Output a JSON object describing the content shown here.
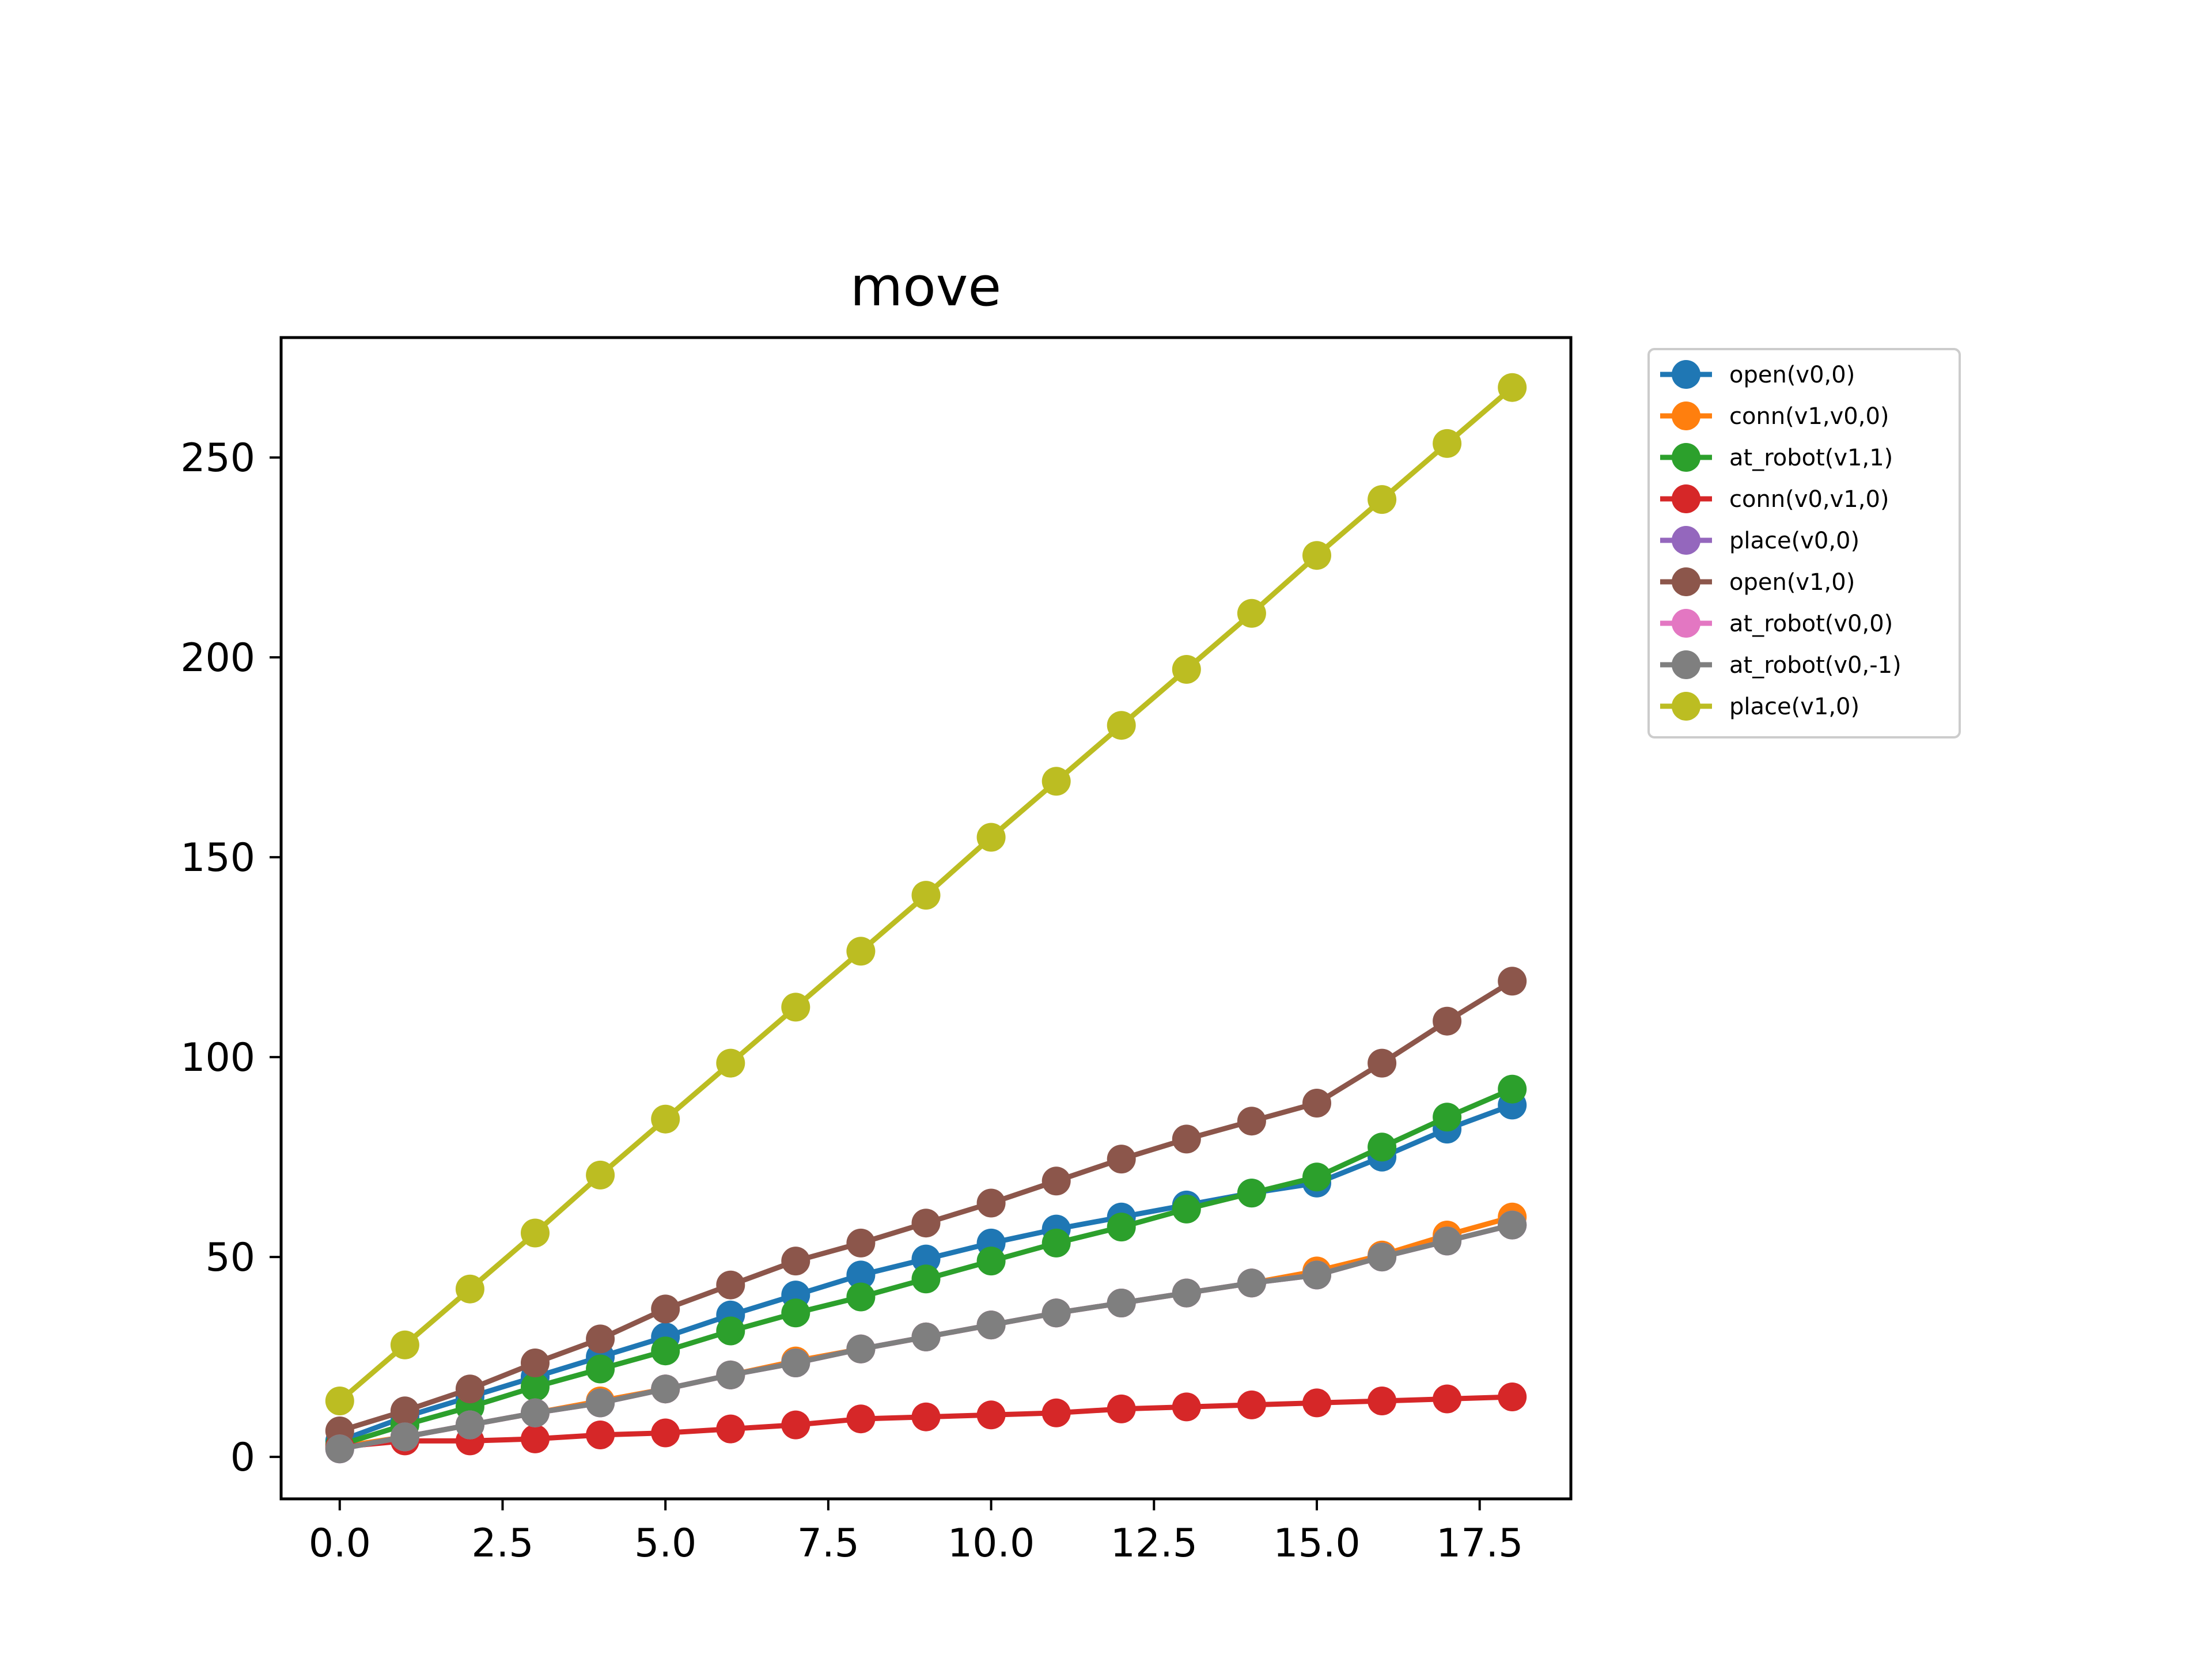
{
  "chart_data": {
    "type": "line",
    "title": "move",
    "xlabel": "",
    "ylabel": "",
    "xlim": [
      -0.9,
      18.9
    ],
    "ylim": [
      -10.5,
      280
    ],
    "x_ticks": [
      "0.0",
      "2.5",
      "5.0",
      "7.5",
      "10.0",
      "12.5",
      "15.0",
      "17.5"
    ],
    "y_ticks": [
      "0",
      "50",
      "100",
      "150",
      "200",
      "250"
    ],
    "grid": false,
    "legend_position": "outside-right-top",
    "x": [
      0,
      1,
      2,
      3,
      4,
      5,
      6,
      7,
      8,
      9,
      10,
      11,
      12,
      13,
      14,
      15,
      16,
      17,
      18
    ],
    "series": [
      {
        "name": "open(v0,0)",
        "color": "#1f77b4",
        "values": [
          4,
          10,
          15,
          20,
          25,
          30,
          35.5,
          40.5,
          45.5,
          49.5,
          53.5,
          57,
          60,
          63,
          66,
          68.5,
          75,
          82,
          88
        ]
      },
      {
        "name": "conn(v1,v0,0)",
        "color": "#ff7f0e",
        "values": [
          2.5,
          5,
          8,
          11,
          14,
          17,
          20.5,
          24,
          27,
          30,
          33,
          36,
          38.5,
          41,
          43.5,
          46.5,
          50.5,
          55.5,
          60
        ]
      },
      {
        "name": "at_robot(v1,1)",
        "color": "#2ca02c",
        "values": [
          3,
          8,
          12.5,
          17.5,
          22,
          26.5,
          31.5,
          36,
          40,
          44.5,
          49,
          53.5,
          57.5,
          62,
          66,
          70,
          77.5,
          85,
          92
        ]
      },
      {
        "name": "conn(v0,v1,0)",
        "color": "#d62728",
        "values": [
          2.5,
          4,
          4,
          4.5,
          5.5,
          6,
          7,
          8,
          9.5,
          10,
          10.5,
          11,
          12,
          12.5,
          13,
          13.5,
          14,
          14.5,
          15
        ]
      },
      {
        "name": "place(v0,0)",
        "color": "#9467bd",
        "values": [
          2,
          5,
          8,
          11,
          13.5,
          17,
          20.5,
          23.5,
          27,
          30,
          33,
          36,
          38.5,
          41,
          43.5,
          45.5,
          50,
          54,
          58
        ]
      },
      {
        "name": "open(v1,0)",
        "color": "#8c564b",
        "values": [
          6.5,
          11.5,
          17,
          23.5,
          29.5,
          37,
          43,
          49,
          53.5,
          58.5,
          63.5,
          69,
          74.5,
          79.5,
          84,
          88.5,
          98.5,
          109,
          119
        ]
      },
      {
        "name": "at_robot(v0,0)",
        "color": "#e377c2",
        "values": [
          2,
          5,
          8,
          11,
          13.5,
          17,
          20.5,
          23.5,
          27,
          30,
          33,
          36,
          38.5,
          41,
          43.5,
          45.5,
          50,
          54,
          58
        ]
      },
      {
        "name": "at_robot(v0,-1)",
        "color": "#7f7f7f",
        "values": [
          2,
          5,
          8,
          11,
          13.5,
          17,
          20.5,
          23.5,
          27,
          30,
          33,
          36,
          38.5,
          41,
          43.5,
          45.5,
          50,
          54,
          58
        ]
      },
      {
        "name": "place(v1,0)",
        "color": "#bcbd22",
        "values": [
          14,
          28,
          42,
          56,
          70.5,
          84.5,
          98.5,
          112.5,
          126.5,
          140.5,
          155,
          169,
          183,
          197,
          211,
          225.5,
          239.5,
          253.5,
          267.5
        ]
      }
    ]
  }
}
